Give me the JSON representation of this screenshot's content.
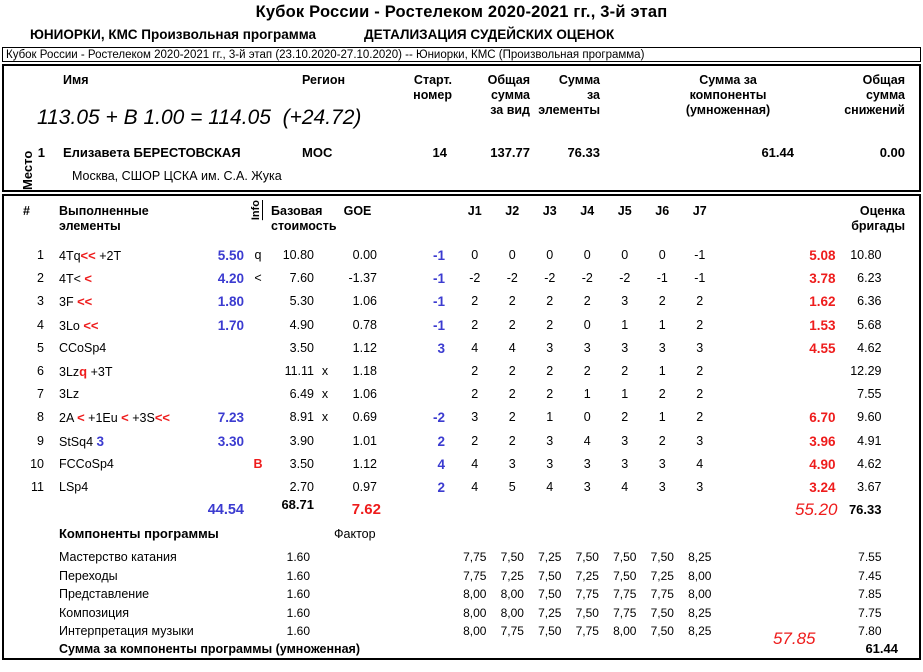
{
  "colors": {
    "annotation_blue": "#3b3bd0",
    "annotation_red": "#ee1c1c"
  },
  "header": {
    "title": "Кубок России - Ростелеком 2020-2021 гг., 3-й этап",
    "subtitle_left": "ЮНИОРКИ, КМС Произвольная программа",
    "subtitle_right": "ДЕТАЛИЗАЦИЯ СУДЕЙСКИХ ОЦЕНОК",
    "event_line": "Кубок России - Ростелеком 2020-2021 гг., 3-й этап (23.10.2020-27.10.2020)  --  Юниорки, КМС  (Произвольная программа)"
  },
  "summary": {
    "col_place": "Место",
    "col_name": "Имя",
    "col_region": "Регион",
    "col_start": "Старт.\nномер",
    "col_total": "Общая\nсумма\nза вид",
    "col_elements": "Сумма\nза\nэлементы",
    "col_components": "Сумма за\nкомпоненты\n(умноженная)",
    "col_deductions": "Общая\nсумма\nснижений",
    "annotation": "113.05 + В 1.00 = 114.05  (+24.72)",
    "row": {
      "place": "1",
      "name": "Елизавета БЕРЕСТОВСКАЯ",
      "region": "МОС",
      "start_number": "14",
      "total": "137.77",
      "elements": "76.33",
      "components": "61.44",
      "deductions": "0.00",
      "club": "Москва, СШОР ЦСКА им. С.А. Жука"
    }
  },
  "elements": {
    "col_num": "#",
    "col_name": "Выполненные\nэлементы",
    "col_info": "Info",
    "col_base": "Базовая\nстоимость",
    "col_goe": "GOE",
    "judges": [
      "J1",
      "J2",
      "J3",
      "J4",
      "J5",
      "J6",
      "J7"
    ],
    "col_score": "Оценка\nбригады",
    "rows": [
      {
        "num": "1",
        "name_parts": [
          [
            "4Tq",
            "k"
          ],
          [
            "<<",
            "r"
          ],
          [
            " +2T",
            "k"
          ]
        ],
        "blue_base": "5.50",
        "info": "q",
        "info_color": "k",
        "base": "10.80",
        "x": "",
        "goe": "0.00",
        "blue_goe": "-1",
        "judges": [
          "0",
          "0",
          "0",
          "0",
          "0",
          "0",
          "-1"
        ],
        "red_score": "5.08",
        "score": "10.80"
      },
      {
        "num": "2",
        "name_parts": [
          [
            "4T< ",
            "k"
          ],
          [
            "<",
            "r"
          ]
        ],
        "blue_base": "4.20",
        "info": "<",
        "info_color": "k",
        "base": "7.60",
        "x": "",
        "goe": "-1.37",
        "blue_goe": "-1",
        "judges": [
          "-2",
          "-2",
          "-2",
          "-2",
          "-2",
          "-1",
          "-1"
        ],
        "red_score": "3.78",
        "score": "6.23"
      },
      {
        "num": "3",
        "name_parts": [
          [
            "3F ",
            "k"
          ],
          [
            "<<",
            "r"
          ]
        ],
        "blue_base": "1.80",
        "info": "",
        "info_color": "k",
        "base": "5.30",
        "x": "",
        "goe": "1.06",
        "blue_goe": "-1",
        "judges": [
          "2",
          "2",
          "2",
          "2",
          "3",
          "2",
          "2"
        ],
        "red_score": "1.62",
        "score": "6.36"
      },
      {
        "num": "4",
        "name_parts": [
          [
            "3Lo ",
            "k"
          ],
          [
            "<<",
            "r"
          ]
        ],
        "blue_base": "1.70",
        "info": "",
        "info_color": "k",
        "base": "4.90",
        "x": "",
        "goe": "0.78",
        "blue_goe": "-1",
        "judges": [
          "2",
          "2",
          "2",
          "0",
          "1",
          "1",
          "2"
        ],
        "red_score": "1.53",
        "score": "5.68"
      },
      {
        "num": "5",
        "name_parts": [
          [
            "CCoSp4",
            "k"
          ]
        ],
        "blue_base": "",
        "info": "",
        "info_color": "k",
        "base": "3.50",
        "x": "",
        "goe": "1.12",
        "blue_goe": "3",
        "judges": [
          "4",
          "4",
          "3",
          "3",
          "3",
          "3",
          "3"
        ],
        "red_score": "4.55",
        "score": "4.62"
      },
      {
        "num": "6",
        "name_parts": [
          [
            "3Lz",
            "k"
          ],
          [
            "q",
            "r"
          ],
          [
            " +3T",
            "k"
          ]
        ],
        "blue_base": "",
        "info": "",
        "info_color": "k",
        "base": "11.11",
        "x": "x",
        "goe": "1.18",
        "blue_goe": "",
        "judges": [
          "2",
          "2",
          "2",
          "2",
          "2",
          "1",
          "2"
        ],
        "red_score": "",
        "score": "12.29"
      },
      {
        "num": "7",
        "name_parts": [
          [
            "3Lz",
            "k"
          ]
        ],
        "blue_base": "",
        "info": "",
        "info_color": "k",
        "base": "6.49",
        "x": "x",
        "goe": "1.06",
        "blue_goe": "",
        "judges": [
          "2",
          "2",
          "2",
          "1",
          "1",
          "2",
          "2"
        ],
        "red_score": "",
        "score": "7.55"
      },
      {
        "num": "8",
        "name_parts": [
          [
            "2A ",
            "k"
          ],
          [
            "<",
            "r"
          ],
          [
            " +1Eu ",
            "k"
          ],
          [
            "<",
            "r"
          ],
          [
            " +3S",
            "k"
          ],
          [
            "<<",
            "r"
          ]
        ],
        "blue_base": "7.23",
        "info": "",
        "info_color": "k",
        "base": "8.91",
        "x": "x",
        "goe": "0.69",
        "blue_goe": "-2",
        "judges": [
          "3",
          "2",
          "1",
          "0",
          "2",
          "1",
          "2"
        ],
        "red_score": "6.70",
        "score": "9.60"
      },
      {
        "num": "9",
        "name_parts": [
          [
            "StSq4 ",
            "k"
          ],
          [
            "3",
            "b"
          ]
        ],
        "blue_base": "3.30",
        "info": "",
        "info_color": "k",
        "base": "3.90",
        "x": "",
        "goe": "1.01",
        "blue_goe": "2",
        "judges": [
          "2",
          "2",
          "3",
          "4",
          "3",
          "2",
          "3"
        ],
        "red_score": "3.96",
        "score": "4.91"
      },
      {
        "num": "10",
        "name_parts": [
          [
            "FCCoSp4",
            "k"
          ]
        ],
        "blue_base": "",
        "info": "В",
        "info_color": "r",
        "base": "3.50",
        "x": "",
        "goe": "1.12",
        "blue_goe": "4",
        "judges": [
          "4",
          "3",
          "3",
          "3",
          "3",
          "3",
          "4"
        ],
        "red_score": "4.90",
        "score": "4.62"
      },
      {
        "num": "11",
        "name_parts": [
          [
            "LSp4",
            "k"
          ]
        ],
        "blue_base": "",
        "info": "",
        "info_color": "k",
        "base": "2.70",
        "x": "",
        "goe": "0.97",
        "blue_goe": "2",
        "judges": [
          "4",
          "5",
          "4",
          "3",
          "4",
          "3",
          "3"
        ],
        "red_score": "3.24",
        "score": "3.67"
      }
    ],
    "totals": {
      "blue_base": "44.54",
      "base": "68.71",
      "goe": "7.62",
      "red_score": "55.20",
      "score": "76.33"
    }
  },
  "components": {
    "label": "Компоненты программы",
    "factor_label": "Фактор",
    "rows": [
      {
        "name": "Мастерство катания",
        "factor": "1.60",
        "judges": [
          "7,75",
          "7,50",
          "7,25",
          "7,50",
          "7,50",
          "7,50",
          "8,25"
        ],
        "score": "7.55"
      },
      {
        "name": "Переходы",
        "factor": "1.60",
        "judges": [
          "7,75",
          "7,25",
          "7,50",
          "7,25",
          "7,50",
          "7,25",
          "8,00"
        ],
        "score": "7.45"
      },
      {
        "name": "Представление",
        "factor": "1.60",
        "judges": [
          "8,00",
          "8,00",
          "7,50",
          "7,75",
          "7,75",
          "7,75",
          "8,00"
        ],
        "score": "7.85"
      },
      {
        "name": "Композиция",
        "factor": "1.60",
        "judges": [
          "8,00",
          "8,00",
          "7,25",
          "7,50",
          "7,75",
          "7,50",
          "8,25"
        ],
        "score": "7.75"
      },
      {
        "name": "Интерпретация музыки",
        "factor": "1.60",
        "judges": [
          "8,00",
          "7,75",
          "7,50",
          "7,75",
          "8,00",
          "7,50",
          "8,25"
        ],
        "score": "7.80"
      }
    ],
    "red_total": "57.85",
    "total_label": "Сумма за компоненты программы (умноженная)",
    "total": "61.44"
  }
}
